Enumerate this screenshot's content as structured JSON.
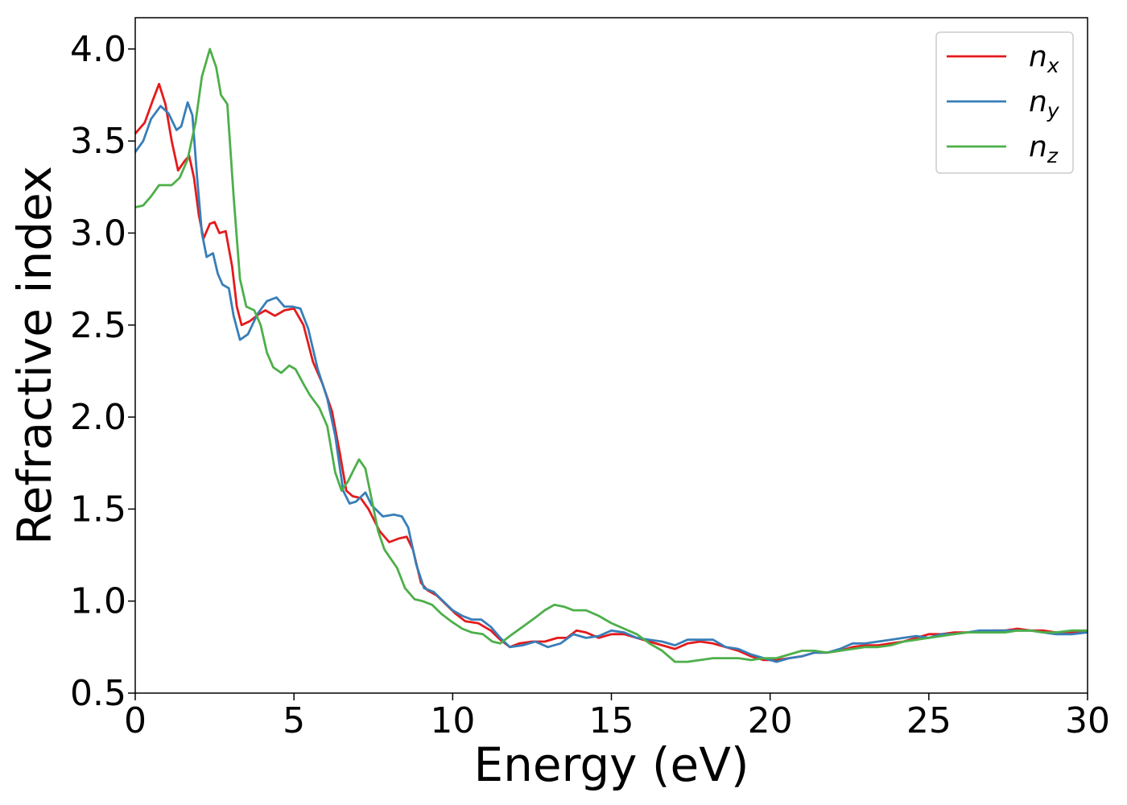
{
  "chart_data": {
    "type": "line",
    "title": "",
    "xlabel": "Energy (eV)",
    "ylabel": "Refractive index",
    "xlim": [
      0,
      30
    ],
    "ylim": [
      0.5,
      4.17
    ],
    "xticks": [
      "0",
      "5",
      "10",
      "15",
      "20",
      "25",
      "30"
    ],
    "yticks": [
      "0.5",
      "1.0",
      "1.5",
      "2.0",
      "2.5",
      "3.0",
      "3.5",
      "4.0"
    ],
    "grid": false,
    "legend_position": "top-right",
    "series": [
      {
        "name": "n",
        "subscript": "x",
        "color": "#e41a1c",
        "points": [
          [
            0,
            3.54
          ],
          [
            0.3,
            3.6
          ],
          [
            0.55,
            3.72
          ],
          [
            0.75,
            3.81
          ],
          [
            0.95,
            3.7
          ],
          [
            1.15,
            3.5
          ],
          [
            1.35,
            3.34
          ],
          [
            1.55,
            3.39
          ],
          [
            1.7,
            3.42
          ],
          [
            1.85,
            3.3
          ],
          [
            2.0,
            3.1
          ],
          [
            2.15,
            2.97
          ],
          [
            2.35,
            3.05
          ],
          [
            2.5,
            3.06
          ],
          [
            2.65,
            3.0
          ],
          [
            2.85,
            3.01
          ],
          [
            3.05,
            2.82
          ],
          [
            3.2,
            2.6
          ],
          [
            3.35,
            2.5
          ],
          [
            3.6,
            2.52
          ],
          [
            3.9,
            2.56
          ],
          [
            4.1,
            2.58
          ],
          [
            4.4,
            2.55
          ],
          [
            4.7,
            2.58
          ],
          [
            5.0,
            2.59
          ],
          [
            5.3,
            2.5
          ],
          [
            5.6,
            2.3
          ],
          [
            5.9,
            2.18
          ],
          [
            6.2,
            2.03
          ],
          [
            6.45,
            1.8
          ],
          [
            6.65,
            1.6
          ],
          [
            6.85,
            1.57
          ],
          [
            7.1,
            1.56
          ],
          [
            7.35,
            1.5
          ],
          [
            7.7,
            1.38
          ],
          [
            8.0,
            1.32
          ],
          [
            8.3,
            1.34
          ],
          [
            8.55,
            1.35
          ],
          [
            8.75,
            1.28
          ],
          [
            9.0,
            1.1
          ],
          [
            9.2,
            1.06
          ],
          [
            9.5,
            1.03
          ],
          [
            9.8,
            0.98
          ],
          [
            10.1,
            0.93
          ],
          [
            10.4,
            0.89
          ],
          [
            10.8,
            0.88
          ],
          [
            11.2,
            0.84
          ],
          [
            11.5,
            0.79
          ],
          [
            11.8,
            0.75
          ],
          [
            12.1,
            0.77
          ],
          [
            12.5,
            0.78
          ],
          [
            12.9,
            0.78
          ],
          [
            13.3,
            0.8
          ],
          [
            13.6,
            0.8
          ],
          [
            13.9,
            0.84
          ],
          [
            14.2,
            0.83
          ],
          [
            14.6,
            0.8
          ],
          [
            15.0,
            0.82
          ],
          [
            15.4,
            0.82
          ],
          [
            15.8,
            0.8
          ],
          [
            16.2,
            0.78
          ],
          [
            16.6,
            0.76
          ],
          [
            17.0,
            0.74
          ],
          [
            17.4,
            0.77
          ],
          [
            17.8,
            0.78
          ],
          [
            18.2,
            0.77
          ],
          [
            18.6,
            0.75
          ],
          [
            19.0,
            0.73
          ],
          [
            19.4,
            0.7
          ],
          [
            19.8,
            0.68
          ],
          [
            20.2,
            0.68
          ],
          [
            20.6,
            0.69
          ],
          [
            21.0,
            0.7
          ],
          [
            21.4,
            0.72
          ],
          [
            21.8,
            0.72
          ],
          [
            22.2,
            0.73
          ],
          [
            22.6,
            0.75
          ],
          [
            23.0,
            0.76
          ],
          [
            23.4,
            0.76
          ],
          [
            23.8,
            0.77
          ],
          [
            24.2,
            0.78
          ],
          [
            24.6,
            0.8
          ],
          [
            25.0,
            0.82
          ],
          [
            25.4,
            0.82
          ],
          [
            25.8,
            0.83
          ],
          [
            26.2,
            0.83
          ],
          [
            26.6,
            0.83
          ],
          [
            27.0,
            0.84
          ],
          [
            27.4,
            0.84
          ],
          [
            27.8,
            0.85
          ],
          [
            28.2,
            0.84
          ],
          [
            28.6,
            0.84
          ],
          [
            29.0,
            0.83
          ],
          [
            29.5,
            0.83
          ],
          [
            30.0,
            0.83
          ]
        ]
      },
      {
        "name": "n",
        "subscript": "y",
        "color": "#377eb8",
        "points": [
          [
            0,
            3.44
          ],
          [
            0.25,
            3.5
          ],
          [
            0.5,
            3.62
          ],
          [
            0.8,
            3.69
          ],
          [
            1.05,
            3.65
          ],
          [
            1.3,
            3.56
          ],
          [
            1.45,
            3.58
          ],
          [
            1.65,
            3.71
          ],
          [
            1.8,
            3.64
          ],
          [
            1.95,
            3.3
          ],
          [
            2.1,
            3.0
          ],
          [
            2.25,
            2.87
          ],
          [
            2.45,
            2.89
          ],
          [
            2.6,
            2.78
          ],
          [
            2.75,
            2.72
          ],
          [
            2.95,
            2.7
          ],
          [
            3.1,
            2.55
          ],
          [
            3.3,
            2.42
          ],
          [
            3.55,
            2.45
          ],
          [
            3.85,
            2.56
          ],
          [
            4.15,
            2.63
          ],
          [
            4.45,
            2.65
          ],
          [
            4.7,
            2.6
          ],
          [
            4.95,
            2.6
          ],
          [
            5.2,
            2.59
          ],
          [
            5.45,
            2.48
          ],
          [
            5.75,
            2.26
          ],
          [
            6.05,
            2.1
          ],
          [
            6.3,
            1.9
          ],
          [
            6.55,
            1.6
          ],
          [
            6.75,
            1.53
          ],
          [
            6.95,
            1.54
          ],
          [
            7.25,
            1.59
          ],
          [
            7.45,
            1.52
          ],
          [
            7.8,
            1.46
          ],
          [
            8.15,
            1.47
          ],
          [
            8.4,
            1.46
          ],
          [
            8.6,
            1.4
          ],
          [
            8.85,
            1.2
          ],
          [
            9.1,
            1.07
          ],
          [
            9.4,
            1.05
          ],
          [
            9.7,
            1.0
          ],
          [
            10.0,
            0.95
          ],
          [
            10.3,
            0.92
          ],
          [
            10.6,
            0.9
          ],
          [
            10.9,
            0.9
          ],
          [
            11.2,
            0.86
          ],
          [
            11.5,
            0.8
          ],
          [
            11.8,
            0.75
          ],
          [
            12.2,
            0.76
          ],
          [
            12.6,
            0.78
          ],
          [
            13.0,
            0.75
          ],
          [
            13.4,
            0.77
          ],
          [
            13.8,
            0.82
          ],
          [
            14.2,
            0.8
          ],
          [
            14.6,
            0.81
          ],
          [
            15.0,
            0.84
          ],
          [
            15.4,
            0.83
          ],
          [
            15.8,
            0.8
          ],
          [
            16.2,
            0.79
          ],
          [
            16.6,
            0.78
          ],
          [
            17.0,
            0.76
          ],
          [
            17.4,
            0.79
          ],
          [
            17.8,
            0.79
          ],
          [
            18.2,
            0.79
          ],
          [
            18.6,
            0.75
          ],
          [
            19.0,
            0.74
          ],
          [
            19.4,
            0.71
          ],
          [
            19.8,
            0.69
          ],
          [
            20.2,
            0.67
          ],
          [
            20.6,
            0.69
          ],
          [
            21.0,
            0.7
          ],
          [
            21.4,
            0.72
          ],
          [
            21.8,
            0.72
          ],
          [
            22.2,
            0.74
          ],
          [
            22.6,
            0.77
          ],
          [
            23.0,
            0.77
          ],
          [
            23.4,
            0.78
          ],
          [
            23.8,
            0.79
          ],
          [
            24.2,
            0.8
          ],
          [
            24.6,
            0.81
          ],
          [
            25.0,
            0.8
          ],
          [
            25.4,
            0.82
          ],
          [
            25.8,
            0.82
          ],
          [
            26.2,
            0.83
          ],
          [
            26.6,
            0.84
          ],
          [
            27.0,
            0.84
          ],
          [
            27.4,
            0.84
          ],
          [
            27.8,
            0.84
          ],
          [
            28.2,
            0.84
          ],
          [
            28.6,
            0.83
          ],
          [
            29.0,
            0.82
          ],
          [
            29.5,
            0.82
          ],
          [
            30.0,
            0.83
          ]
        ]
      },
      {
        "name": "n",
        "subscript": "z",
        "color": "#4daf4a",
        "points": [
          [
            0,
            3.14
          ],
          [
            0.25,
            3.15
          ],
          [
            0.5,
            3.2
          ],
          [
            0.75,
            3.26
          ],
          [
            0.95,
            3.26
          ],
          [
            1.15,
            3.26
          ],
          [
            1.4,
            3.3
          ],
          [
            1.65,
            3.4
          ],
          [
            1.9,
            3.6
          ],
          [
            2.1,
            3.85
          ],
          [
            2.35,
            4.0
          ],
          [
            2.55,
            3.9
          ],
          [
            2.7,
            3.75
          ],
          [
            2.9,
            3.7
          ],
          [
            3.1,
            3.2
          ],
          [
            3.3,
            2.75
          ],
          [
            3.5,
            2.6
          ],
          [
            3.75,
            2.58
          ],
          [
            3.95,
            2.5
          ],
          [
            4.15,
            2.35
          ],
          [
            4.35,
            2.27
          ],
          [
            4.6,
            2.24
          ],
          [
            4.85,
            2.28
          ],
          [
            5.05,
            2.26
          ],
          [
            5.3,
            2.18
          ],
          [
            5.5,
            2.12
          ],
          [
            5.8,
            2.05
          ],
          [
            6.05,
            1.95
          ],
          [
            6.3,
            1.7
          ],
          [
            6.5,
            1.6
          ],
          [
            6.7,
            1.65
          ],
          [
            6.9,
            1.72
          ],
          [
            7.05,
            1.77
          ],
          [
            7.25,
            1.72
          ],
          [
            7.45,
            1.55
          ],
          [
            7.65,
            1.38
          ],
          [
            7.85,
            1.28
          ],
          [
            8.05,
            1.23
          ],
          [
            8.25,
            1.18
          ],
          [
            8.5,
            1.07
          ],
          [
            8.8,
            1.01
          ],
          [
            9.05,
            1.0
          ],
          [
            9.35,
            0.98
          ],
          [
            9.65,
            0.93
          ],
          [
            9.95,
            0.89
          ],
          [
            10.3,
            0.85
          ],
          [
            10.6,
            0.83
          ],
          [
            10.95,
            0.82
          ],
          [
            11.25,
            0.78
          ],
          [
            11.5,
            0.77
          ],
          [
            11.8,
            0.81
          ],
          [
            12.2,
            0.86
          ],
          [
            12.6,
            0.91
          ],
          [
            12.9,
            0.95
          ],
          [
            13.2,
            0.98
          ],
          [
            13.5,
            0.97
          ],
          [
            13.8,
            0.95
          ],
          [
            14.2,
            0.95
          ],
          [
            14.6,
            0.92
          ],
          [
            15.0,
            0.88
          ],
          [
            15.4,
            0.85
          ],
          [
            15.8,
            0.82
          ],
          [
            16.2,
            0.77
          ],
          [
            16.6,
            0.73
          ],
          [
            17.0,
            0.67
          ],
          [
            17.4,
            0.67
          ],
          [
            17.8,
            0.68
          ],
          [
            18.2,
            0.69
          ],
          [
            18.6,
            0.69
          ],
          [
            19.0,
            0.69
          ],
          [
            19.4,
            0.68
          ],
          [
            19.8,
            0.69
          ],
          [
            20.2,
            0.69
          ],
          [
            20.6,
            0.71
          ],
          [
            21.0,
            0.73
          ],
          [
            21.4,
            0.73
          ],
          [
            21.8,
            0.72
          ],
          [
            22.2,
            0.73
          ],
          [
            22.6,
            0.74
          ],
          [
            23.0,
            0.75
          ],
          [
            23.4,
            0.75
          ],
          [
            23.8,
            0.76
          ],
          [
            24.2,
            0.78
          ],
          [
            24.6,
            0.79
          ],
          [
            25.0,
            0.8
          ],
          [
            25.4,
            0.81
          ],
          [
            25.8,
            0.82
          ],
          [
            26.2,
            0.83
          ],
          [
            26.6,
            0.83
          ],
          [
            27.0,
            0.83
          ],
          [
            27.4,
            0.83
          ],
          [
            27.8,
            0.84
          ],
          [
            28.2,
            0.84
          ],
          [
            28.6,
            0.83
          ],
          [
            29.0,
            0.83
          ],
          [
            29.5,
            0.84
          ],
          [
            30.0,
            0.84
          ]
        ]
      }
    ]
  }
}
